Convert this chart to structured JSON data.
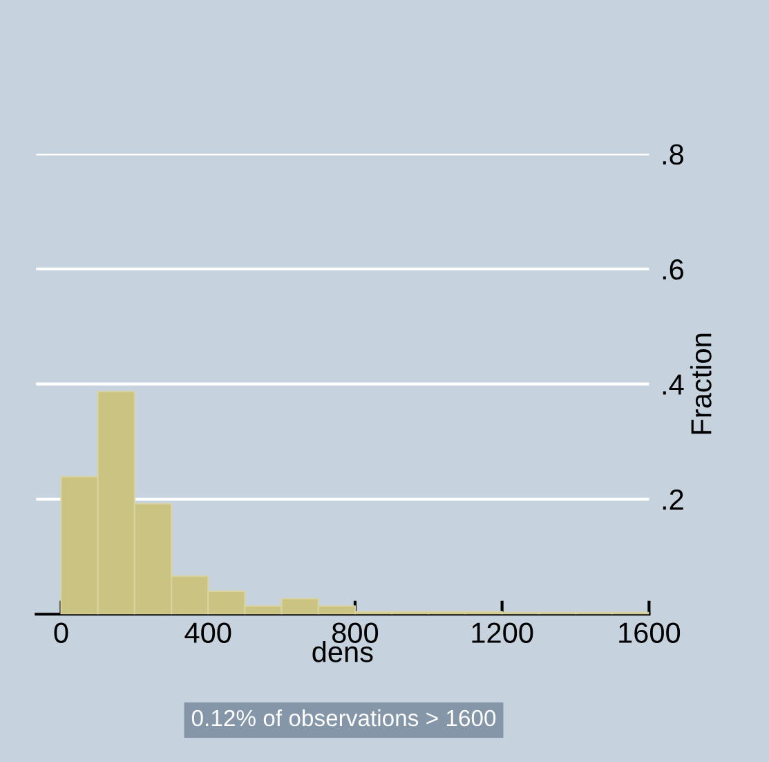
{
  "chart_data": {
    "type": "histogram",
    "bins": [
      0,
      100,
      200,
      300,
      400,
      500,
      600,
      700,
      800,
      900,
      1000,
      1100,
      1200,
      1300,
      1400,
      1500,
      1600
    ],
    "values": [
      0.239,
      0.387,
      0.192,
      0.066,
      0.04,
      0.014,
      0.027,
      0.014,
      0.004,
      0.004,
      0.004,
      0.004,
      0.003,
      0.003,
      0.003,
      0.003
    ],
    "color": "#cbc382",
    "xlabel": "dens",
    "ylabel": "Fraction",
    "xlim": [
      -68,
      1600
    ],
    "ylim": [
      0,
      0.8
    ],
    "xticks": [
      0,
      400,
      800,
      1200,
      1600
    ],
    "yticks": [
      {
        "value": 0.2,
        "label": ".2"
      },
      {
        "value": 0.4,
        "label": ".4"
      },
      {
        "value": 0.6,
        "label": ".6"
      },
      {
        "value": 0.8,
        "label": ".8"
      }
    ],
    "grid": "y",
    "annotations": [
      "0.12% of observations > 1600"
    ]
  }
}
